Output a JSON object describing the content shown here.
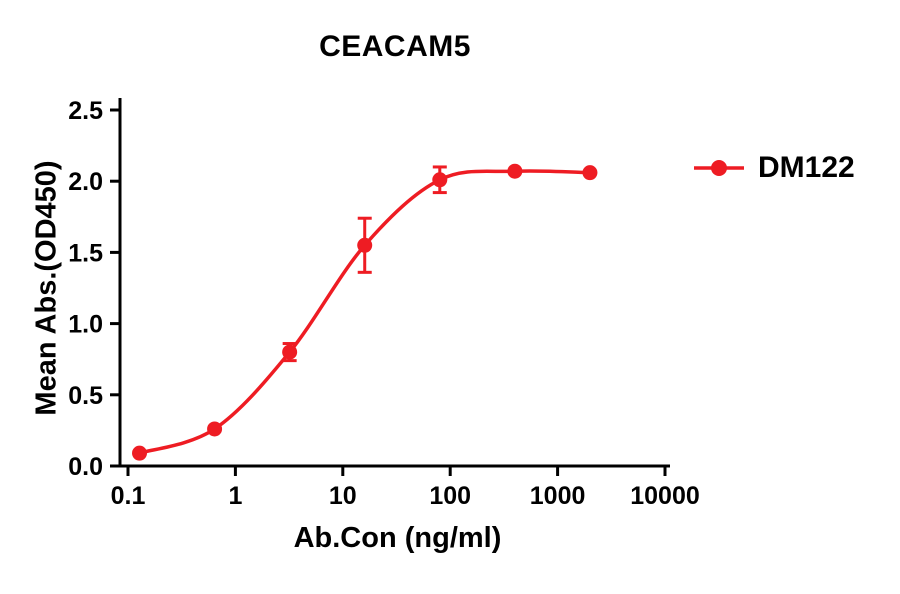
{
  "title": "CEACAM5",
  "legend": {
    "label": "DM122"
  },
  "colors": {
    "series": "#ee1c23",
    "axis": "#000000"
  },
  "chart_data": {
    "type": "line",
    "title": "CEACAM5",
    "xlabel": "Ab.Con (ng/ml)",
    "ylabel": "Mean Abs.(OD450)",
    "series_name": "DM122",
    "x_scale": "log",
    "xlim": [
      0.1,
      10000
    ],
    "ylim": [
      0.0,
      2.5
    ],
    "x_ticks": [
      0.1,
      1,
      10,
      100,
      1000,
      10000
    ],
    "x_tick_labels": [
      "0.1",
      "1",
      "10",
      "100",
      "1000",
      "10000"
    ],
    "y_ticks": [
      0.0,
      0.5,
      1.0,
      1.5,
      2.0,
      2.5
    ],
    "y_tick_labels": [
      "0.0",
      "0.5",
      "1.0",
      "1.5",
      "2.0",
      "2.5"
    ],
    "grid": false,
    "legend_position": "right",
    "x": [
      0.128,
      0.64,
      3.2,
      16,
      80,
      400,
      2000
    ],
    "y": [
      0.09,
      0.26,
      0.8,
      1.55,
      2.01,
      2.07,
      2.06
    ],
    "y_err": [
      0.0,
      0.0,
      0.06,
      0.19,
      0.09,
      0.0,
      0.0
    ]
  }
}
